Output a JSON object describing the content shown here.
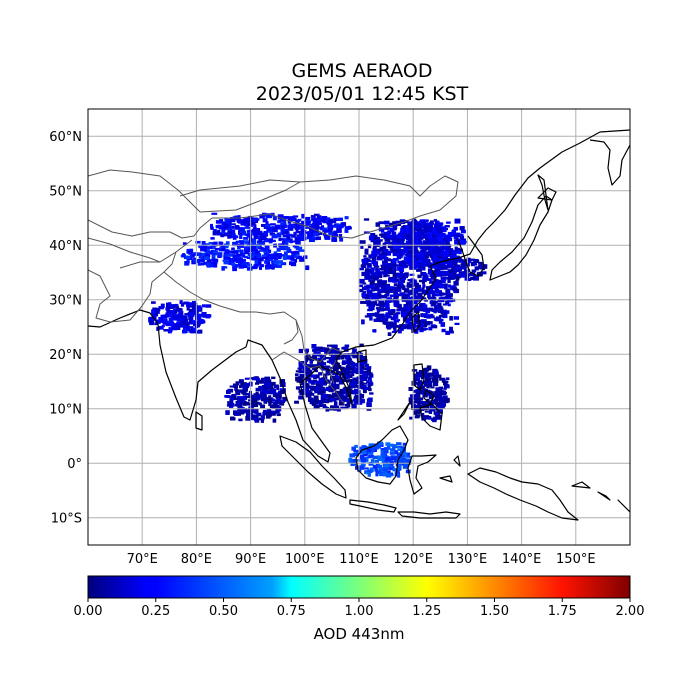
{
  "title": {
    "line1": "GEMS AERAOD",
    "line2": "2023/05/01 12:45 KST"
  },
  "map": {
    "projection": "PlateCarree",
    "lon_range": [
      60,
      160
    ],
    "lat_range": [
      -15,
      65
    ],
    "lon_ticks": [
      {
        "value": 70,
        "label": "70°E"
      },
      {
        "value": 80,
        "label": "80°E"
      },
      {
        "value": 90,
        "label": "90°E"
      },
      {
        "value": 100,
        "label": "100°E"
      },
      {
        "value": 110,
        "label": "110°E"
      },
      {
        "value": 120,
        "label": "120°E"
      },
      {
        "value": 130,
        "label": "130°E"
      },
      {
        "value": 140,
        "label": "140°E"
      },
      {
        "value": 150,
        "label": "150°E"
      }
    ],
    "lat_ticks": [
      {
        "value": 60,
        "label": "60°N"
      },
      {
        "value": 50,
        "label": "50°N"
      },
      {
        "value": 40,
        "label": "40°N"
      },
      {
        "value": 30,
        "label": "30°N"
      },
      {
        "value": 20,
        "label": "20°N"
      },
      {
        "value": 10,
        "label": "10°N"
      },
      {
        "value": 0,
        "label": "0°"
      },
      {
        "value": -10,
        "label": "10°S"
      }
    ],
    "gridlines": true,
    "grid_color": "#b0b0b0",
    "coast_color": "#000000",
    "border_color": "#555555"
  },
  "colorbar": {
    "label": "AOD 443nm",
    "colormap": "jet",
    "range": [
      0,
      2
    ],
    "ticks": [
      "0.00",
      "0.25",
      "0.50",
      "0.75",
      "1.00",
      "1.25",
      "1.50",
      "1.75",
      "2.00"
    ]
  },
  "aod_patches": [
    {
      "region": "east-china",
      "lon": [
        110,
        128
      ],
      "lat": [
        24,
        45
      ],
      "aod": 0.15
    },
    {
      "region": "north-china",
      "lon": [
        116,
        129
      ],
      "lat": [
        36,
        45
      ],
      "aod": 0.2
    },
    {
      "region": "taklamakan",
      "lon": [
        77,
        100
      ],
      "lat": [
        36,
        41
      ],
      "aod": 0.3
    },
    {
      "region": "mongolia",
      "lon": [
        82,
        108
      ],
      "lat": [
        41,
        46
      ],
      "aod": 0.25
    },
    {
      "region": "india-west",
      "lon": [
        71,
        82
      ],
      "lat": [
        24,
        30
      ],
      "aod": 0.2
    },
    {
      "region": "indochina",
      "lon": [
        98,
        112
      ],
      "lat": [
        10,
        22
      ],
      "aod": 0.1
    },
    {
      "region": "borneo",
      "lon": [
        108,
        119
      ],
      "lat": [
        -2,
        4
      ],
      "aod": 0.4
    },
    {
      "region": "korea-japan",
      "lon": [
        126,
        133
      ],
      "lat": [
        34,
        38
      ],
      "aod": 0.12
    },
    {
      "region": "philippines",
      "lon": [
        119,
        126
      ],
      "lat": [
        8,
        18
      ],
      "aod": 0.08
    },
    {
      "region": "bay-of-bengal",
      "lon": [
        85,
        96
      ],
      "lat": [
        8,
        16
      ],
      "aod": 0.1
    }
  ]
}
